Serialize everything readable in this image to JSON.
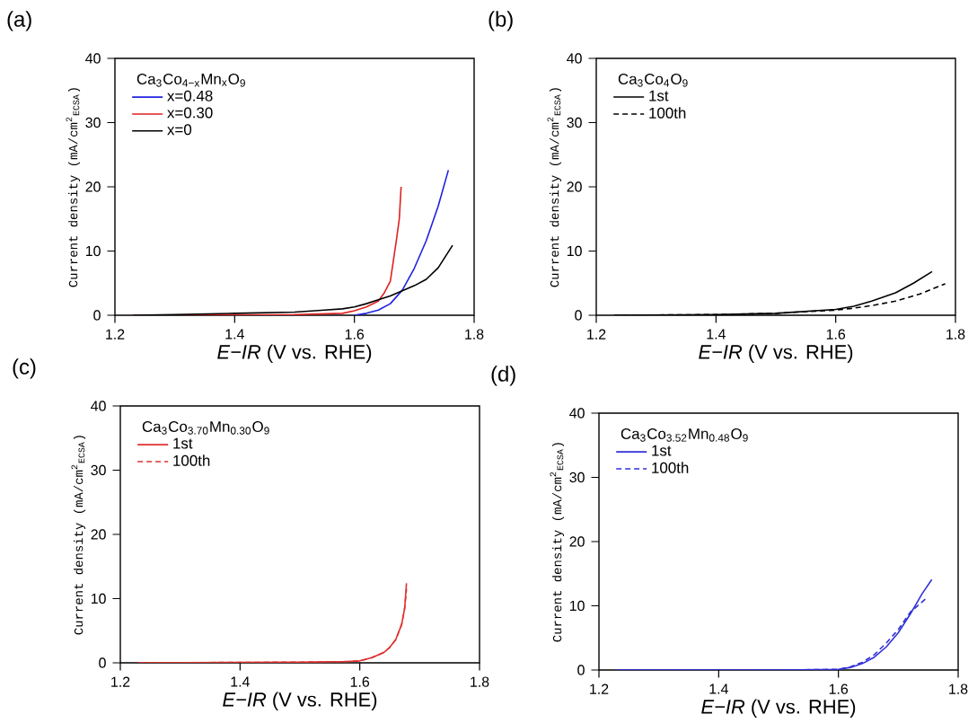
{
  "chart_data": [
    {
      "type": "line",
      "title": "(a)",
      "xlabel": "*E−IR* (V vs. RHE)",
      "ylabel": "Current density (mA/cm$^{2}$$_{ECSA}$)",
      "legend_title": "Ca$_{3}$Co$_{4−x}$Mn$_{x}$O$_{9}$",
      "legend": "top left",
      "grid": false,
      "marker": "none",
      "xlim": [
        1.2,
        1.8
      ],
      "ylim": [
        0,
        40
      ],
      "xticks": [
        1.2,
        1.4,
        1.6,
        1.8
      ],
      "yticks": [
        0,
        10,
        20,
        30,
        40
      ],
      "series": [
        {
          "name": "x=0.48",
          "color": "#2020e0",
          "x": [
            1.6,
            1.62,
            1.64,
            1.66,
            1.68,
            1.7,
            1.72,
            1.74,
            1.757
          ],
          "values": [
            0,
            0.3,
            0.8,
            1.8,
            3.9,
            7.3,
            11.6,
            17,
            22.6
          ]
        },
        {
          "name": "x=0.30",
          "color": "#e02020",
          "x": [
            1.23,
            1.5,
            1.58,
            1.6,
            1.62,
            1.64,
            1.65,
            1.66,
            1.67,
            1.675,
            1.678
          ],
          "values": [
            0,
            0.1,
            0.3,
            0.7,
            1.3,
            2.2,
            3.5,
            5.3,
            11.6,
            15,
            20
          ]
        },
        {
          "name": "x=0",
          "color": "#000000",
          "x": [
            1.23,
            1.3,
            1.4,
            1.5,
            1.55,
            1.58,
            1.6,
            1.62,
            1.64,
            1.66,
            1.68,
            1.7,
            1.72,
            1.74,
            1.764
          ],
          "values": [
            0,
            0.1,
            0.3,
            0.5,
            0.8,
            1.0,
            1.3,
            1.8,
            2.4,
            3.0,
            3.8,
            4.6,
            5.6,
            7.4,
            10.9
          ]
        }
      ]
    },
    {
      "type": "line",
      "title": "(b)",
      "xlabel": "*E−IR* (V vs. RHE)",
      "ylabel": "Current density (mA/cm$^{2}$$_{ECSA}$)",
      "legend_title": "Ca$_{3}$Co$_{4}$O$_{9}$",
      "legend": "top left",
      "grid": false,
      "marker": "none",
      "xlim": [
        1.2,
        1.8
      ],
      "ylim": [
        0,
        40
      ],
      "xticks": [
        1.2,
        1.4,
        1.6,
        1.8
      ],
      "yticks": [
        0,
        10,
        20,
        30,
        40
      ],
      "series": [
        {
          "name": "1st",
          "color": "#000000",
          "line_style": "solid",
          "x": [
            1.23,
            1.4,
            1.5,
            1.6,
            1.63,
            1.66,
            1.7,
            1.73,
            1.761
          ],
          "values": [
            0,
            0.1,
            0.3,
            0.9,
            1.4,
            2.2,
            3.5,
            5.0,
            6.8
          ]
        },
        {
          "name": "100th",
          "color": "#000000",
          "line_style": "dashed",
          "x": [
            1.23,
            1.4,
            1.5,
            1.6,
            1.63,
            1.66,
            1.7,
            1.74,
            1.783
          ],
          "values": [
            0,
            0.1,
            0.3,
            0.8,
            1.1,
            1.5,
            2.2,
            3.3,
            4.9
          ]
        }
      ]
    },
    {
      "type": "line",
      "title": "(c)",
      "xlabel": "*E−IR* (V vs. RHE)",
      "ylabel": "Current density (mA/cm$^{2}$$_{ECSA}$)",
      "legend_title": "Ca$_{3}$Co$_{3.70}$Mn$_{0.30}$O$_{9}$",
      "legend": "top left",
      "grid": false,
      "marker": "none",
      "xlim": [
        1.2,
        1.8
      ],
      "ylim": [
        0,
        40
      ],
      "xticks": [
        1.2,
        1.4,
        1.6,
        1.8
      ],
      "yticks": [
        0,
        10,
        20,
        30,
        40
      ],
      "series": [
        {
          "name": "1st",
          "color": "#e03030",
          "line_style": "solid",
          "x": [
            1.23,
            1.5,
            1.58,
            1.6,
            1.62,
            1.64,
            1.65,
            1.66,
            1.67,
            1.675,
            1.678
          ],
          "values": [
            0,
            0.1,
            0.2,
            0.3,
            0.8,
            1.6,
            2.4,
            3.6,
            6.0,
            8.5,
            12.4
          ]
        },
        {
          "name": "100th",
          "color": "#e03030",
          "line_style": "dashed",
          "x": [
            1.23,
            1.5,
            1.58,
            1.6,
            1.62,
            1.64,
            1.65,
            1.66,
            1.67,
            1.675,
            1.678
          ],
          "values": [
            0,
            0.1,
            0.2,
            0.3,
            0.8,
            1.6,
            2.4,
            3.6,
            6.0,
            8.5,
            11.5
          ]
        }
      ]
    },
    {
      "type": "line",
      "title": "(d)",
      "xlabel": "*E−IR* (V vs. RHE)",
      "ylabel": "Current density (mA/cm$^{2}$$_{ECSA}$)",
      "legend_title": "Ca$_{3}$Co$_{3.52}$Mn$_{0.48}$O$_{9}$",
      "legend": "top left",
      "grid": false,
      "marker": "none",
      "xlim": [
        1.2,
        1.8
      ],
      "ylim": [
        0,
        40
      ],
      "xticks": [
        1.2,
        1.4,
        1.6,
        1.8
      ],
      "yticks": [
        0,
        10,
        20,
        30,
        40
      ],
      "series": [
        {
          "name": "1st",
          "color": "#3030d8",
          "line_style": "solid",
          "x": [
            1.23,
            1.5,
            1.6,
            1.62,
            1.64,
            1.66,
            1.68,
            1.7,
            1.72,
            1.74,
            1.756
          ],
          "values": [
            0,
            0,
            0.1,
            0.4,
            1.0,
            2.0,
            3.6,
            5.8,
            8.7,
            11.9,
            14.1
          ]
        },
        {
          "name": "100th",
          "color": "#3030d8",
          "line_style": "dashed",
          "x": [
            1.23,
            1.5,
            1.6,
            1.62,
            1.64,
            1.66,
            1.68,
            1.7,
            1.72,
            1.747
          ],
          "values": [
            0,
            0,
            0.1,
            0.5,
            1.2,
            2.4,
            4.2,
            6.3,
            9.0,
            11.2
          ]
        }
      ]
    }
  ]
}
